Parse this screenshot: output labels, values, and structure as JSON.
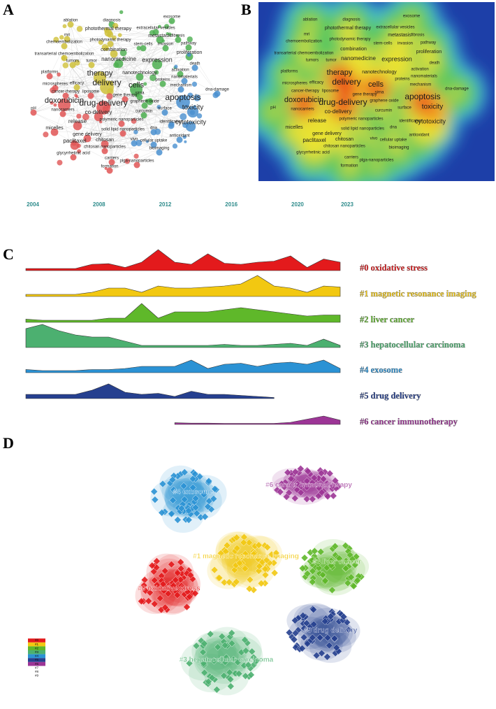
{
  "panel_labels": [
    "A",
    "B",
    "C",
    "D"
  ],
  "keywords": [
    "ablation",
    "diagnosis",
    "exosome",
    "photothermal therapy",
    "extracellular vesicles",
    "mri",
    "photodynamic therapy",
    "metastasis",
    "fibrosis",
    "chemoembolization",
    "stem-cells",
    "invasion",
    "pathway",
    "combination",
    "proliferation",
    "transarterial chemoembolization",
    "tumors",
    "tumor",
    "nanomedicine",
    "expression",
    "death",
    "platforms",
    "therapy",
    "nanotechnology",
    "activation",
    "nanomaterials",
    "microspheres",
    "efficacy",
    "delivery",
    "proteins",
    "mechanism",
    "dna-damage",
    "cancer-therapy",
    "liposome",
    "gene therapy",
    "cells",
    "sirna",
    "apoptosis",
    "doxorubicin",
    "graphene oxide",
    "drug-delivery",
    "toxicity",
    "pH",
    "nanocarriers",
    "co-delivery",
    "curcumin",
    "surface",
    "release",
    "identification",
    "polymeric nanoparticles",
    "cytotoxicity",
    "micelles",
    "dna",
    "solid lipid nanoparticles",
    "gene delivery",
    "antioxidant",
    "paclitaxel",
    "chitosan",
    "vivo",
    "cellular uptake",
    "chitosan nanoparticles",
    "glycyrrhetinic acid",
    "bioimaging",
    "carriers",
    "plga-nanoparticles",
    "formation"
  ],
  "chart_data": {
    "type": "area",
    "x": [
      2004,
      2005,
      2006,
      2007,
      2008,
      2009,
      2010,
      2011,
      2012,
      2013,
      2014,
      2015,
      2016,
      2017,
      2018,
      2019,
      2020,
      2021,
      2022,
      2023
    ],
    "xlim": [
      2004,
      2023
    ],
    "xticks": [
      2004,
      2008,
      2012,
      2016,
      2020,
      2023
    ],
    "series": [
      {
        "name": "#0 oxidative stress",
        "color": "#e31a1c",
        "values": [
          1,
          1,
          1,
          1,
          3,
          3.3,
          1.5,
          4,
          10,
          4,
          3,
          8,
          3.5,
          3,
          4,
          4.5,
          7,
          1.5,
          5.5,
          4
        ]
      },
      {
        "name": "#1 magnetic resonance imaging",
        "color": "#f2c811",
        "values": [
          1,
          1,
          1,
          1,
          2,
          4,
          4,
          2,
          5,
          4,
          4,
          4.5,
          5,
          6,
          10,
          5,
          4,
          2,
          5,
          4.5
        ]
      },
      {
        "name": "#2 liver cancer",
        "color": "#5fb82a",
        "values": [
          1.5,
          1,
          1,
          1,
          1,
          2,
          2,
          9,
          2,
          5,
          5,
          5,
          6,
          7,
          6,
          5,
          4,
          3,
          3.5,
          3.5
        ]
      },
      {
        "name": "#3 hepatocellular carcinoma",
        "color": "#4cb070",
        "values": [
          9,
          11,
          8,
          6,
          5,
          5,
          3,
          1,
          1,
          1,
          1,
          1,
          1.5,
          1,
          1,
          1.5,
          2,
          1,
          4,
          1
        ]
      },
      {
        "name": "#4 exosome",
        "color": "#2b92d4",
        "values": [
          1.5,
          1,
          1,
          1,
          1.5,
          1.5,
          2,
          3,
          3,
          3,
          6,
          2,
          4,
          4.5,
          3,
          4.5,
          5,
          4,
          6,
          2
        ]
      },
      {
        "name": "#5 drug delivery",
        "color": "#26408f",
        "values": [
          2,
          2,
          2,
          2,
          4,
          7,
          3,
          2,
          2.5,
          1,
          3.5,
          2,
          2,
          1.5,
          1,
          0.5,
          null,
          null,
          null,
          null
        ]
      },
      {
        "name": "#6 cancer immunotherapy",
        "color": "#9c3596",
        "values": [
          null,
          null,
          null,
          null,
          null,
          null,
          null,
          null,
          null,
          0.8,
          0.6,
          0.6,
          0.5,
          0.5,
          0.5,
          0.5,
          1,
          2.5,
          4,
          2
        ]
      }
    ]
  },
  "legend": [
    "#0",
    "#1",
    "#2",
    "#3",
    "#4",
    "#5",
    "#6",
    "#7",
    "#8",
    "#9"
  ]
}
